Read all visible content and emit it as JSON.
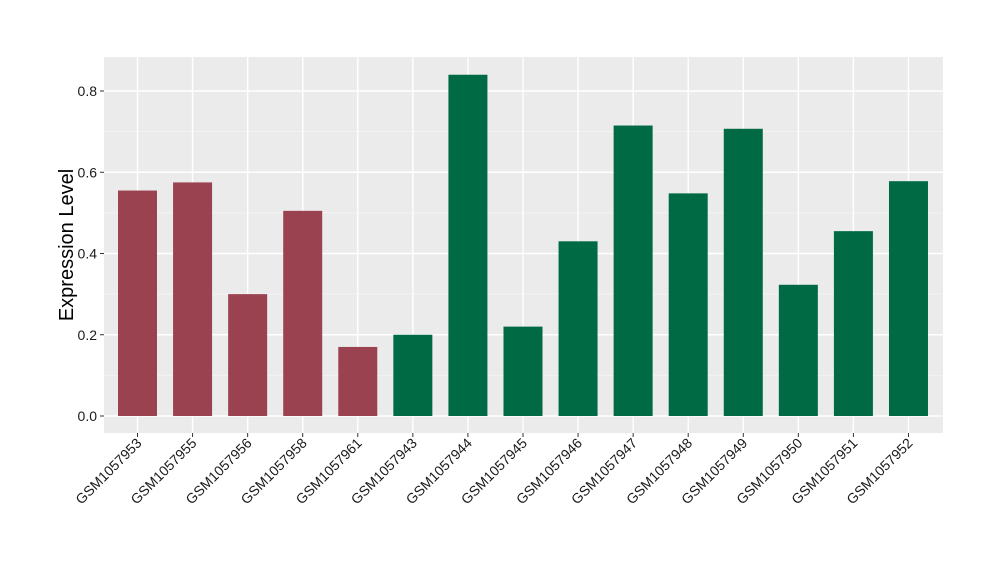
{
  "chart_data": {
    "type": "bar",
    "title": "",
    "xlabel": "",
    "ylabel": "Expression Level",
    "ylim": [
      0,
      0.88
    ],
    "yticks": [
      "0.0",
      "0.2",
      "0.4",
      "0.6",
      "0.8"
    ],
    "grid": true,
    "legend": "none",
    "categories": [
      "GSM1057953",
      "GSM1057955",
      "GSM1057956",
      "GSM1057958",
      "GSM1057961",
      "GSM1057943",
      "GSM1057944",
      "GSM1057945",
      "GSM1057946",
      "GSM1057947",
      "GSM1057948",
      "GSM1057949",
      "GSM1057950",
      "GSM1057951",
      "GSM1057952"
    ],
    "values": [
      0.555,
      0.575,
      0.3,
      0.505,
      0.17,
      0.2,
      0.84,
      0.22,
      0.43,
      0.715,
      0.548,
      0.707,
      0.323,
      0.455,
      0.578
    ],
    "groups": [
      0,
      0,
      0,
      0,
      0,
      1,
      1,
      1,
      1,
      1,
      1,
      1,
      1,
      1,
      1
    ],
    "colors": {
      "group_0": "#9b4250",
      "group_1": "#006a45",
      "panel_background": "#ebebeb",
      "grid_major": "#ffffff",
      "axis_ticks": "#333333"
    }
  }
}
